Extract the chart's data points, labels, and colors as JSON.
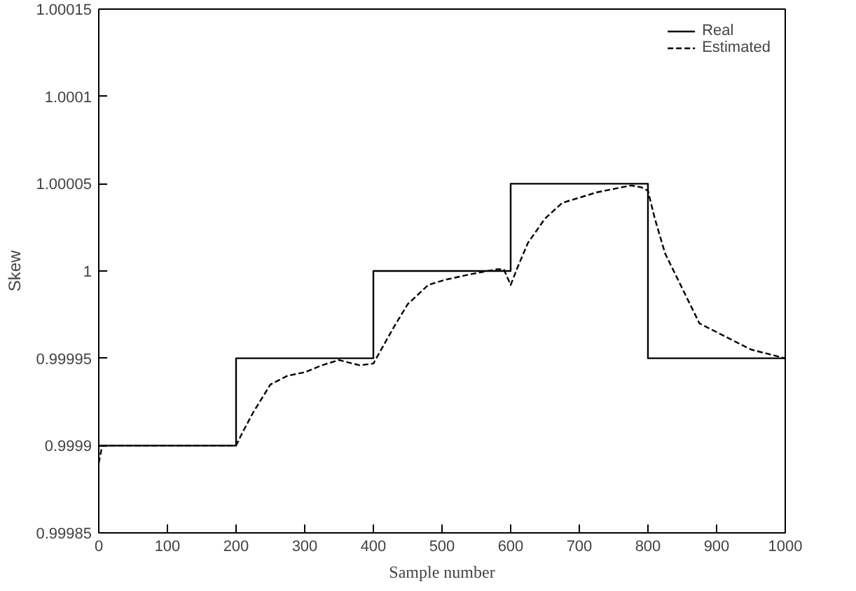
{
  "chart_data": {
    "type": "line",
    "xlabel": "Sample number",
    "ylabel": "Skew",
    "xlim": [
      0,
      1000
    ],
    "ylim": [
      0.99985,
      1.00015
    ],
    "xticks": [
      0,
      100,
      200,
      300,
      400,
      500,
      600,
      700,
      800,
      900,
      1000
    ],
    "yticks": [
      0.99985,
      0.9999,
      0.99995,
      1,
      1.00005,
      1.0001,
      1.00015
    ],
    "grid": false,
    "legend": "top right",
    "series": [
      {
        "name": "Real",
        "type": "step",
        "color": "#000000",
        "line_style": "solid",
        "x": [
          0,
          200,
          400,
          600,
          800,
          1000
        ],
        "values": [
          0.9999,
          0.99995,
          1,
          1.00005,
          0.99995,
          0.99995
        ]
      },
      {
        "name": "Estimated",
        "color": "#000000",
        "line_style": "dashed",
        "x": [
          0,
          5,
          50,
          100,
          150,
          200,
          210,
          225,
          250,
          275,
          300,
          325,
          350,
          380,
          400,
          410,
          430,
          450,
          480,
          505,
          540,
          580,
          590,
          600,
          610,
          625,
          650,
          675,
          700,
          725,
          750,
          775,
          790,
          800,
          810,
          825,
          850,
          875,
          900,
          950,
          1000
        ],
        "values": [
          0.99989,
          0.9999,
          0.9999,
          0.9999,
          0.9999,
          0.9999,
          0.999908,
          0.999919,
          0.999935,
          0.99994,
          0.999942,
          0.999946,
          0.999949,
          0.999946,
          0.999947,
          0.999954,
          0.999968,
          0.999981,
          0.999992,
          0.999995,
          0.999998,
          1.000001,
          1.000001,
          0.999992,
          1.000002,
          1.000016,
          1.00003,
          1.000039,
          1.000042,
          1.000045,
          1.000047,
          1.000049,
          1.000048,
          1.000046,
          1.00003,
          1.00001,
          0.99999,
          0.99997,
          0.999965,
          0.999955,
          0.99995
        ]
      }
    ]
  }
}
